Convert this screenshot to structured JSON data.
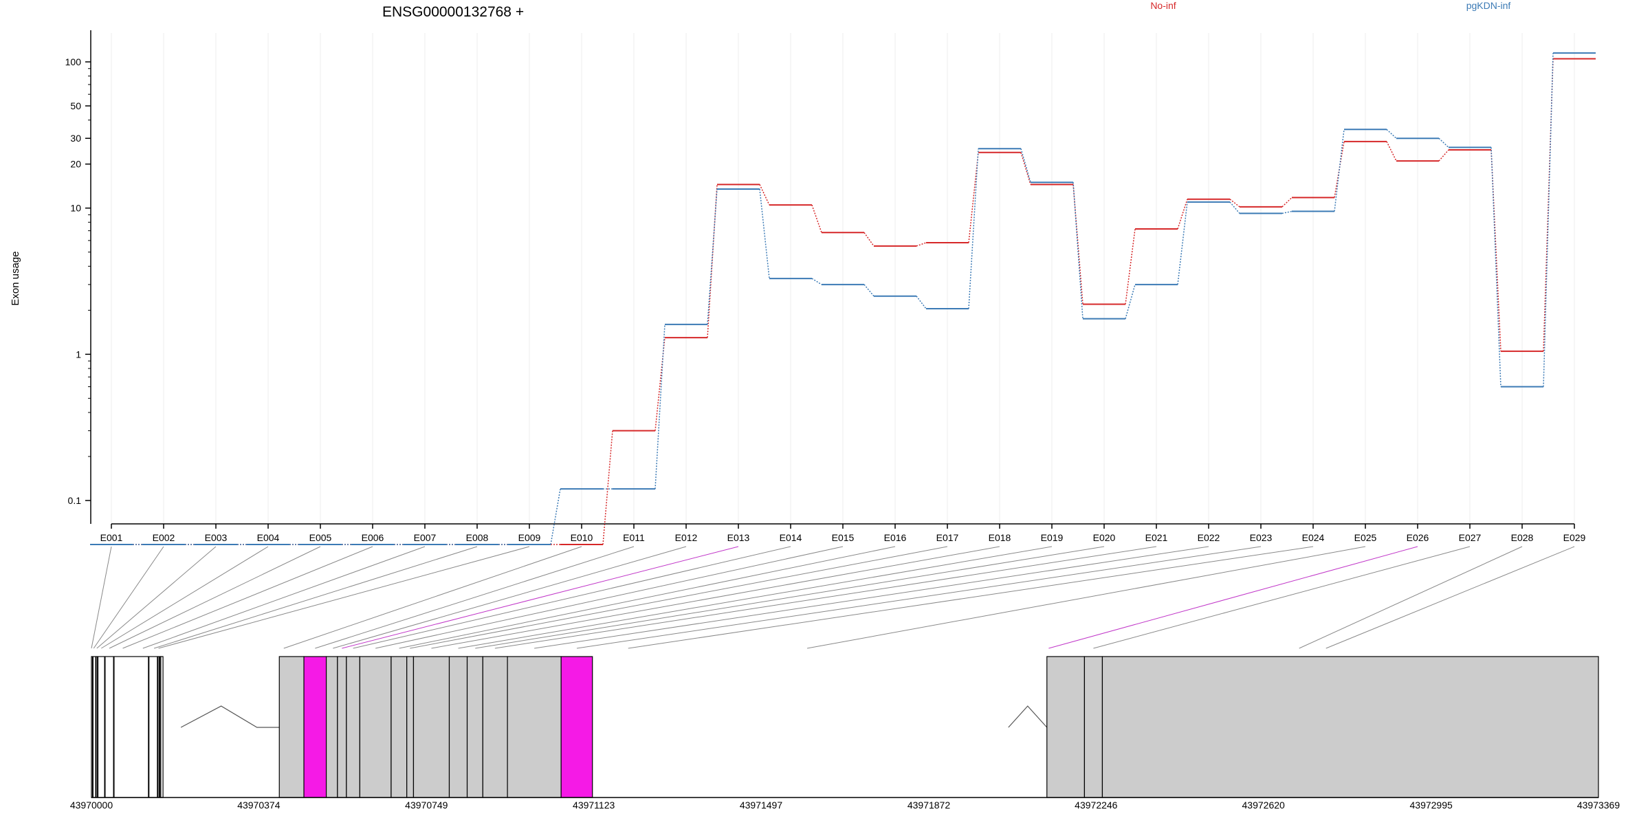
{
  "chart_data": {
    "type": "line",
    "title": "ENSG00000132768 +",
    "ylabel": "Exon usage",
    "y_scale": "log",
    "y_ticks": [
      "0.1",
      "1",
      "10",
      "20",
      "30",
      "50",
      "100"
    ],
    "y_tick_values": [
      0.1,
      1,
      10,
      20,
      30,
      50,
      100
    ],
    "grid": "vertical",
    "legend_placement": "top",
    "categories": [
      "E001",
      "E002",
      "E003",
      "E004",
      "E005",
      "E006",
      "E007",
      "E008",
      "E009",
      "E010",
      "E011",
      "E012",
      "E013",
      "E014",
      "E015",
      "E016",
      "E017",
      "E018",
      "E019",
      "E020",
      "E021",
      "E022",
      "E023",
      "E024",
      "E025",
      "E026",
      "E027",
      "E028",
      "E029"
    ],
    "series": [
      {
        "name": "No-inf",
        "color": "#d62728",
        "values": [
          0.05,
          0.05,
          0.05,
          0.05,
          0.05,
          0.05,
          0.05,
          0.05,
          0.05,
          0.05,
          0.3,
          1.3,
          14.5,
          10.5,
          6.8,
          5.5,
          5.8,
          24,
          14.5,
          2.2,
          7.2,
          11.5,
          10.2,
          11.8,
          28.5,
          21,
          25,
          1.05,
          105
        ]
      },
      {
        "name": "pgKDN-inf",
        "color": "#3b7ab5",
        "values": [
          0.05,
          0.05,
          0.05,
          0.05,
          0.05,
          0.05,
          0.05,
          0.05,
          0.05,
          0.12,
          0.12,
          1.6,
          13.5,
          3.3,
          3,
          2.5,
          2.05,
          25.5,
          15,
          1.75,
          3,
          11,
          9.2,
          9.5,
          34.5,
          30,
          26,
          0.6,
          115
        ]
      }
    ],
    "highlighted_exons": [
      "E013",
      "E026"
    ],
    "gene_model": {
      "coord_labels": [
        "43970000",
        "43970374",
        "43970749",
        "43971123",
        "43971497",
        "43971872",
        "43972246",
        "43972620",
        "43972995",
        "43973369"
      ],
      "coord_start": 43970000,
      "coord_end": 43973369,
      "highlight_color": "#f51ae6",
      "exon_color": "#cccccc"
    }
  }
}
